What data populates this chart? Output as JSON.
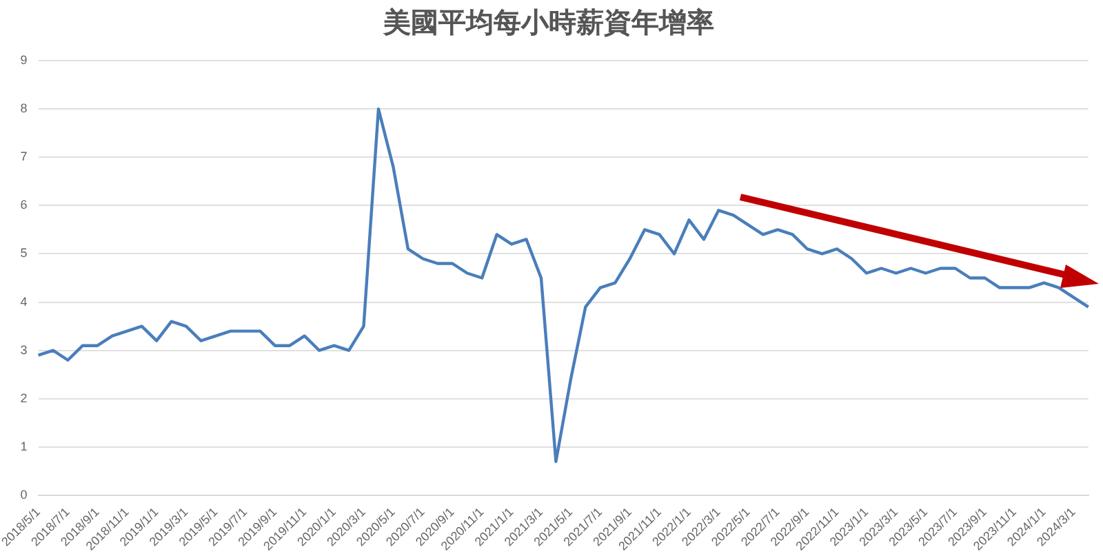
{
  "chart_data": {
    "type": "line",
    "title": "美國平均每小時薪資年增率",
    "categories": [
      "2018/5/1",
      null,
      "2018/7/1",
      null,
      "2018/9/1",
      null,
      "2018/11/1",
      null,
      "2019/1/1",
      null,
      "2019/3/1",
      null,
      "2019/5/1",
      null,
      "2019/7/1",
      null,
      "2019/9/1",
      null,
      "2019/11/1",
      null,
      "2020/1/1",
      null,
      "2020/3/1",
      null,
      "2020/5/1",
      null,
      "2020/7/1",
      null,
      "2020/9/1",
      null,
      "2020/11/1",
      null,
      "2021/1/1",
      null,
      "2021/3/1",
      null,
      "2021/5/1",
      null,
      "2021/7/1",
      null,
      "2021/9/1",
      null,
      "2021/11/1",
      null,
      "2022/1/1",
      null,
      "2022/3/1",
      null,
      "2022/5/1",
      null,
      "2022/7/1",
      null,
      "2022/9/1",
      null,
      "2022/11/1",
      null,
      "2023/1/1",
      null,
      "2023/3/1",
      null,
      "2023/5/1",
      null,
      "2023/7/1",
      null,
      "2023/9/1",
      null,
      "2023/11/1",
      null,
      "2024/1/1",
      null,
      "2024/3/1",
      null
    ],
    "series": [
      {
        "color": "#4a7ebb",
        "values": [
          2.9,
          3.0,
          2.8,
          3.1,
          3.1,
          3.3,
          3.4,
          3.5,
          3.2,
          3.6,
          3.5,
          3.2,
          3.3,
          3.4,
          3.4,
          3.4,
          3.1,
          3.1,
          3.3,
          3.0,
          3.1,
          3.0,
          3.5,
          8.0,
          6.8,
          5.1,
          4.9,
          4.8,
          4.8,
          4.6,
          4.5,
          5.4,
          5.2,
          5.3,
          4.5,
          0.7,
          2.4,
          3.9,
          4.3,
          4.4,
          4.9,
          5.5,
          5.4,
          5.0,
          5.7,
          5.3,
          5.9,
          5.8,
          5.6,
          5.4,
          5.5,
          5.4,
          5.1,
          5.0,
          5.1,
          4.9,
          4.6,
          4.7,
          4.6,
          4.7,
          4.6,
          4.7,
          4.7,
          4.5,
          4.5,
          4.3,
          4.3,
          4.3,
          4.4,
          4.3,
          4.1,
          3.9
        ]
      }
    ],
    "ylim": [
      0,
      9
    ],
    "yticks": [
      0,
      1,
      2,
      3,
      4,
      5,
      6,
      7,
      8,
      9
    ],
    "grid": "y",
    "legend": false,
    "marker": "none",
    "line_style": "solid"
  }
}
